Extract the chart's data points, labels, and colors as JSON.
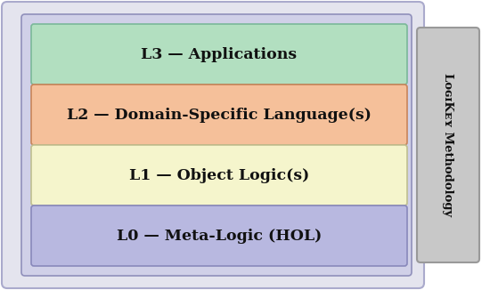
{
  "layers": [
    {
      "label": "L3 — Applications",
      "color": "#b2dfc0",
      "border": "#7ab899"
    },
    {
      "label": "L2 — Domain-Specific Language(s)",
      "color": "#f5c09a",
      "border": "#c8855a"
    },
    {
      "label": "L1 — Object Logic(s)",
      "color": "#f5f5cc",
      "border": "#c0c090"
    },
    {
      "label": "L0 — Meta-Logic (HOL)",
      "color": "#b8b8e0",
      "border": "#8888bb"
    }
  ],
  "bg_color": "#ffffff",
  "outer_bg": "#e4e4ee",
  "outer_border": "#aaaacc",
  "inner_bg": "#d0d0e8",
  "inner_border": "#9090bb",
  "sidebar_bg": "#c8c8c8",
  "sidebar_border": "#999999",
  "sidebar_text": "LᴏɢɪKᴇʏ Methodology",
  "text_color": "#111111",
  "font_size": 12.5
}
